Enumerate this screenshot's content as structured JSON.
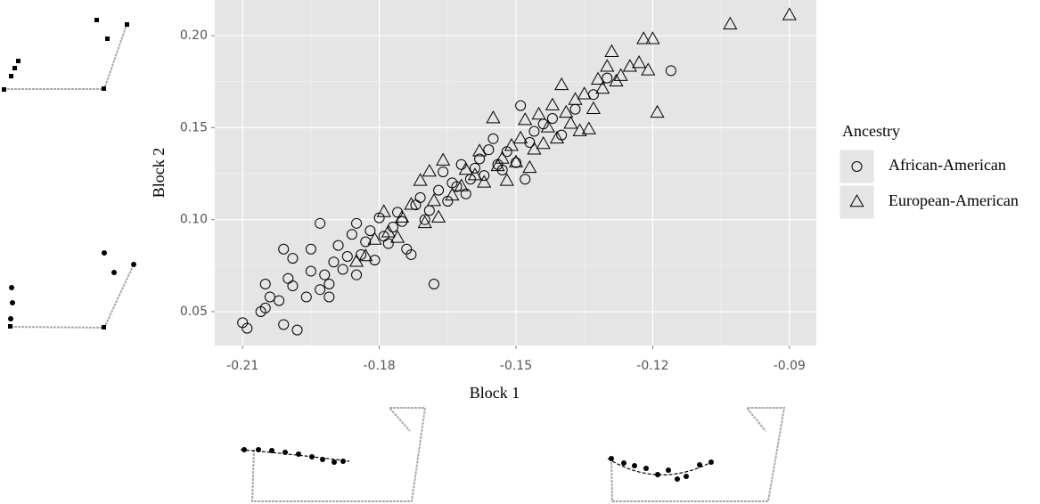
{
  "chart_data": {
    "type": "scatter",
    "x_label": "Block 1",
    "y_label": "Block 2",
    "legend_title": "Ancestry",
    "legend_position": "right",
    "xlim": [
      -0.2161,
      -0.0841
    ],
    "ylim": [
      0.0316,
      0.2194
    ],
    "xticks": [
      -0.21,
      -0.18,
      -0.15,
      -0.12,
      -0.09
    ],
    "yticks": [
      0.05,
      {
        "value": 0.1,
        "label": "0.10"
      },
      0.15,
      {
        "value": 0.2,
        "label": "0.20"
      }
    ],
    "grid": true,
    "series": [
      {
        "name": "African-American",
        "marker": "circle",
        "color": "#000000",
        "x": [
          -0.21,
          -0.209,
          -0.206,
          -0.205,
          -0.205,
          -0.204,
          -0.202,
          -0.201,
          -0.201,
          -0.2,
          -0.199,
          -0.199,
          -0.198,
          -0.196,
          -0.195,
          -0.195,
          -0.193,
          -0.193,
          -0.192,
          -0.191,
          -0.191,
          -0.19,
          -0.189,
          -0.188,
          -0.187,
          -0.186,
          -0.185,
          -0.185,
          -0.184,
          -0.183,
          -0.182,
          -0.181,
          -0.18,
          -0.179,
          -0.178,
          -0.177,
          -0.176,
          -0.175,
          -0.174,
          -0.173,
          -0.172,
          -0.171,
          -0.17,
          -0.169,
          -0.168,
          -0.167,
          -0.166,
          -0.165,
          -0.164,
          -0.163,
          -0.162,
          -0.161,
          -0.16,
          -0.159,
          -0.158,
          -0.157,
          -0.156,
          -0.155,
          -0.154,
          -0.153,
          -0.152,
          -0.15,
          -0.149,
          -0.148,
          -0.147,
          -0.146,
          -0.144,
          -0.142,
          -0.14,
          -0.137,
          -0.133,
          -0.13,
          -0.116
        ],
        "values": [
          0.044,
          0.041,
          0.05,
          0.052,
          0.065,
          0.058,
          0.056,
          0.084,
          0.043,
          0.068,
          0.064,
          0.079,
          0.04,
          0.058,
          0.072,
          0.084,
          0.098,
          0.062,
          0.07,
          0.058,
          0.065,
          0.077,
          0.086,
          0.073,
          0.08,
          0.092,
          0.07,
          0.098,
          0.081,
          0.088,
          0.094,
          0.078,
          0.101,
          0.091,
          0.087,
          0.096,
          0.104,
          0.099,
          0.084,
          0.081,
          0.108,
          0.112,
          0.1,
          0.105,
          0.065,
          0.116,
          0.126,
          0.11,
          0.12,
          0.118,
          0.13,
          0.114,
          0.122,
          0.128,
          0.133,
          0.124,
          0.138,
          0.144,
          0.13,
          0.127,
          0.137,
          0.131,
          0.162,
          0.122,
          0.142,
          0.148,
          0.152,
          0.155,
          0.146,
          0.16,
          0.168,
          0.177,
          0.181
        ]
      },
      {
        "name": "European-American",
        "marker": "triangle",
        "color": "#000000",
        "x": [
          -0.185,
          -0.183,
          -0.181,
          -0.179,
          -0.178,
          -0.176,
          -0.175,
          -0.173,
          -0.171,
          -0.17,
          -0.169,
          -0.168,
          -0.167,
          -0.166,
          -0.164,
          -0.162,
          -0.161,
          -0.159,
          -0.158,
          -0.157,
          -0.155,
          -0.154,
          -0.153,
          -0.152,
          -0.151,
          -0.15,
          -0.149,
          -0.148,
          -0.147,
          -0.146,
          -0.145,
          -0.144,
          -0.143,
          -0.142,
          -0.141,
          -0.14,
          -0.139,
          -0.138,
          -0.137,
          -0.136,
          -0.135,
          -0.134,
          -0.133,
          -0.132,
          -0.131,
          -0.13,
          -0.129,
          -0.128,
          -0.127,
          -0.125,
          -0.123,
          -0.122,
          -0.121,
          -0.12,
          -0.119,
          -0.103,
          -0.09
        ],
        "values": [
          0.077,
          0.08,
          0.089,
          0.104,
          0.093,
          0.09,
          0.101,
          0.108,
          0.121,
          0.098,
          0.126,
          0.11,
          0.101,
          0.132,
          0.113,
          0.118,
          0.127,
          0.124,
          0.137,
          0.12,
          0.155,
          0.129,
          0.133,
          0.121,
          0.14,
          0.131,
          0.144,
          0.154,
          0.128,
          0.138,
          0.157,
          0.141,
          0.15,
          0.162,
          0.144,
          0.173,
          0.158,
          0.152,
          0.165,
          0.148,
          0.168,
          0.149,
          0.16,
          0.176,
          0.171,
          0.183,
          0.191,
          0.175,
          0.178,
          0.183,
          0.185,
          0.198,
          0.181,
          0.198,
          0.158,
          0.206,
          0.211
        ]
      }
    ]
  }
}
